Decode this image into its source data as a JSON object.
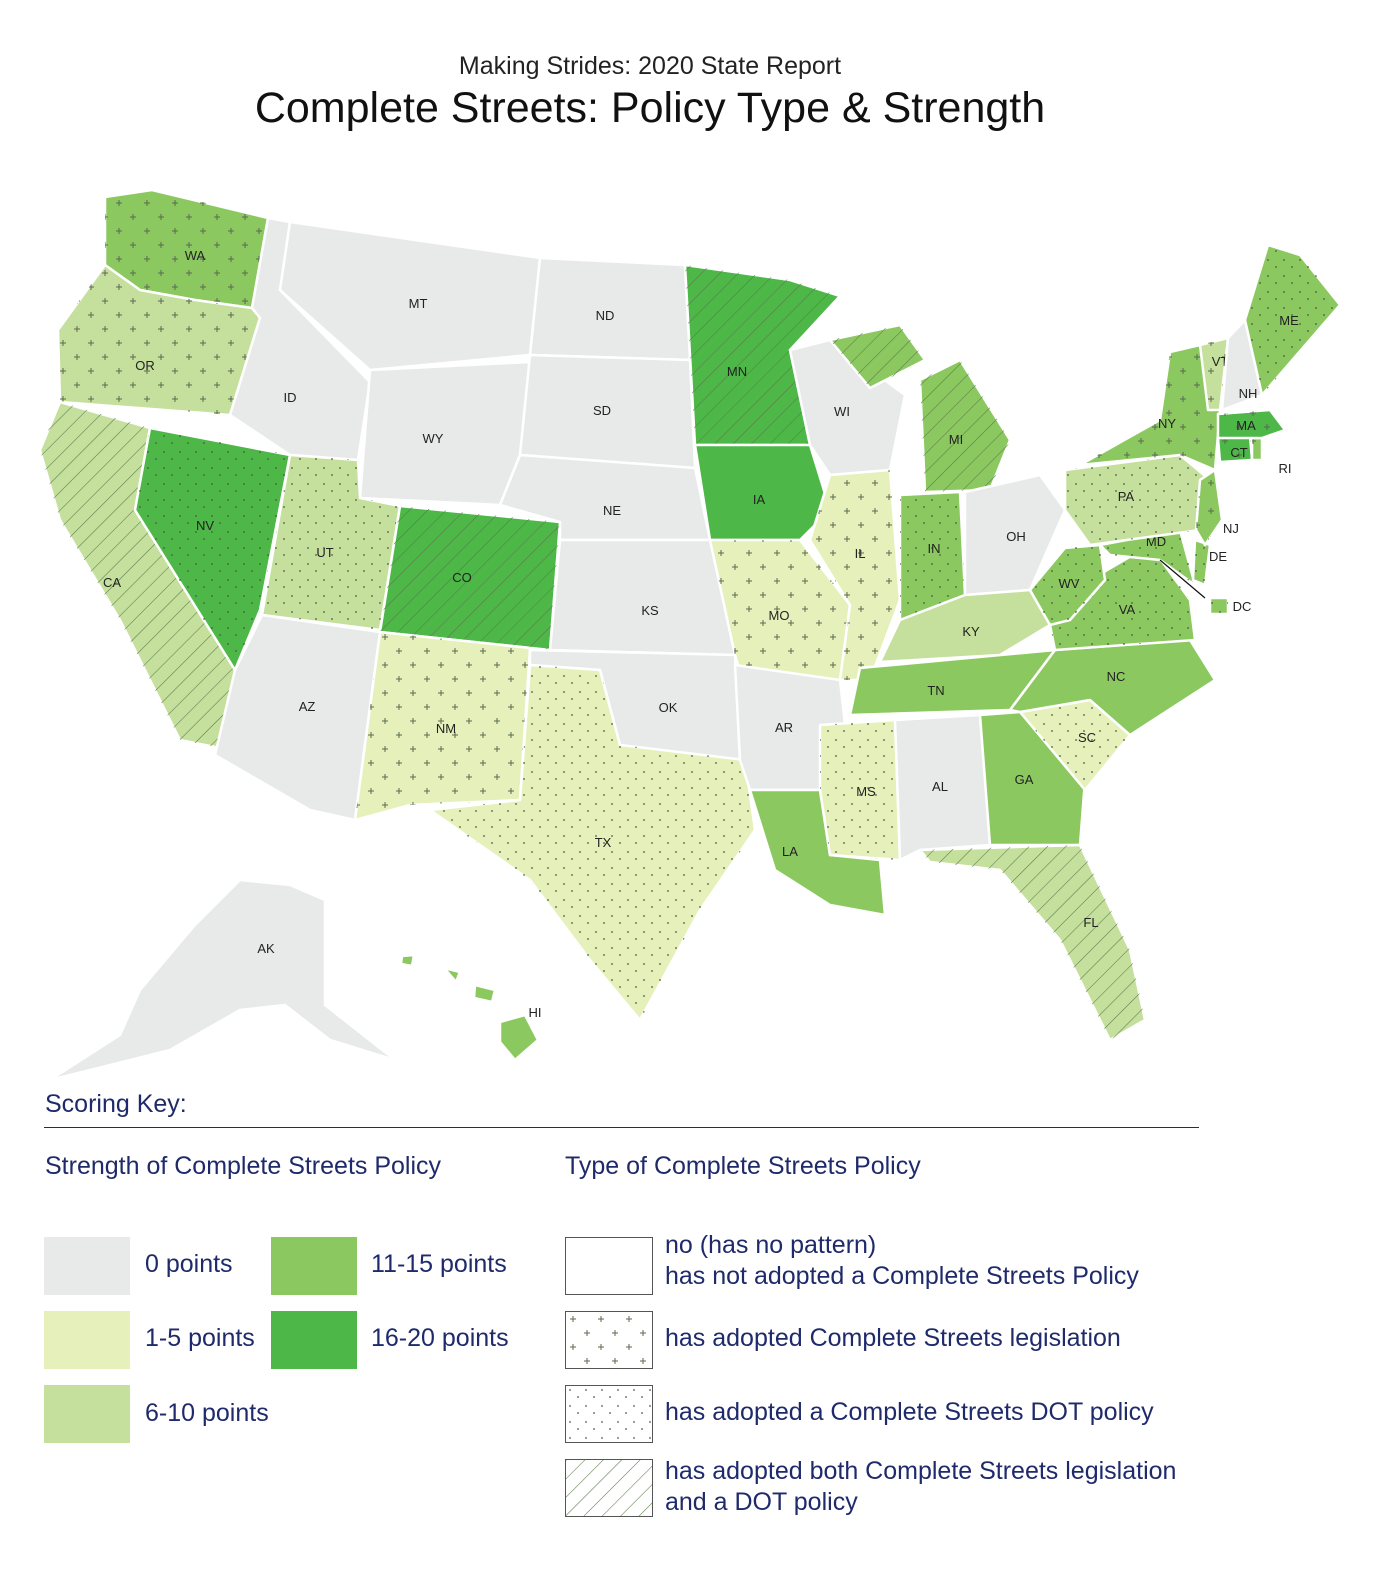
{
  "header": {
    "subtitle": "Making Strides:  2020 State Report",
    "title": "Complete Streets: Policy Type & Strength"
  },
  "colors": {
    "points_0": "#e8e9e9",
    "points_1_5": "#e6f0bb",
    "points_6_10": "#c5df9d",
    "points_11_15": "#8cc860",
    "points_16_20": "#4db748"
  },
  "states": [
    {
      "abbr": "WA",
      "strength": "11-15 points",
      "type": "legislation"
    },
    {
      "abbr": "OR",
      "strength": "6-10 points",
      "type": "legislation"
    },
    {
      "abbr": "CA",
      "strength": "6-10 points",
      "type": "both"
    },
    {
      "abbr": "NV",
      "strength": "16-20 points",
      "type": "dot"
    },
    {
      "abbr": "ID",
      "strength": "0 points",
      "type": "none"
    },
    {
      "abbr": "MT",
      "strength": "0 points",
      "type": "none"
    },
    {
      "abbr": "WY",
      "strength": "0 points",
      "type": "none"
    },
    {
      "abbr": "UT",
      "strength": "6-10 points",
      "type": "dot"
    },
    {
      "abbr": "CO",
      "strength": "16-20 points",
      "type": "both"
    },
    {
      "abbr": "AZ",
      "strength": "0 points",
      "type": "none"
    },
    {
      "abbr": "NM",
      "strength": "1-5 points",
      "type": "legislation"
    },
    {
      "abbr": "ND",
      "strength": "0 points",
      "type": "none"
    },
    {
      "abbr": "SD",
      "strength": "0 points",
      "type": "none"
    },
    {
      "abbr": "NE",
      "strength": "0 points",
      "type": "none"
    },
    {
      "abbr": "KS",
      "strength": "0 points",
      "type": "none"
    },
    {
      "abbr": "OK",
      "strength": "0 points",
      "type": "none"
    },
    {
      "abbr": "TX",
      "strength": "1-5 points",
      "type": "dot"
    },
    {
      "abbr": "MN",
      "strength": "16-20 points",
      "type": "both"
    },
    {
      "abbr": "IA",
      "strength": "16-20 points",
      "type": "none"
    },
    {
      "abbr": "MO",
      "strength": "1-5 points",
      "type": "legislation"
    },
    {
      "abbr": "AR",
      "strength": "0 points",
      "type": "none"
    },
    {
      "abbr": "LA",
      "strength": "11-15 points",
      "type": "none"
    },
    {
      "abbr": "WI",
      "strength": "0 points",
      "type": "none"
    },
    {
      "abbr": "IL",
      "strength": "1-5 points",
      "type": "legislation"
    },
    {
      "abbr": "MI",
      "strength": "11-15 points",
      "type": "both"
    },
    {
      "abbr": "IN",
      "strength": "11-15 points",
      "type": "dot"
    },
    {
      "abbr": "OH",
      "strength": "0 points",
      "type": "none"
    },
    {
      "abbr": "KY",
      "strength": "6-10 points",
      "type": "none"
    },
    {
      "abbr": "TN",
      "strength": "11-15 points",
      "type": "none"
    },
    {
      "abbr": "MS",
      "strength": "1-5 points",
      "type": "dot"
    },
    {
      "abbr": "AL",
      "strength": "0 points",
      "type": "none"
    },
    {
      "abbr": "GA",
      "strength": "11-15 points",
      "type": "none"
    },
    {
      "abbr": "FL",
      "strength": "6-10 points",
      "type": "both"
    },
    {
      "abbr": "SC",
      "strength": "1-5 points",
      "type": "dot"
    },
    {
      "abbr": "NC",
      "strength": "11-15 points",
      "type": "none"
    },
    {
      "abbr": "VA",
      "strength": "11-15 points",
      "type": "dot"
    },
    {
      "abbr": "WV",
      "strength": "11-15 points",
      "type": "dot"
    },
    {
      "abbr": "MD",
      "strength": "11-15 points",
      "type": "dot"
    },
    {
      "abbr": "DE",
      "strength": "11-15 points",
      "type": "dot"
    },
    {
      "abbr": "DC",
      "strength": "11-15 points",
      "type": "dot"
    },
    {
      "abbr": "PA",
      "strength": "6-10 points",
      "type": "dot"
    },
    {
      "abbr": "NJ",
      "strength": "11-15 points",
      "type": "legislation"
    },
    {
      "abbr": "NY",
      "strength": "11-15 points",
      "type": "legislation"
    },
    {
      "abbr": "CT",
      "strength": "16-20 points",
      "type": "legislation"
    },
    {
      "abbr": "RI",
      "strength": "11-15 points",
      "type": "legislation"
    },
    {
      "abbr": "MA",
      "strength": "16-20 points",
      "type": "legislation"
    },
    {
      "abbr": "VT",
      "strength": "6-10 points",
      "type": "legislation"
    },
    {
      "abbr": "NH",
      "strength": "0 points",
      "type": "none"
    },
    {
      "abbr": "ME",
      "strength": "11-15 points",
      "type": "dot"
    },
    {
      "abbr": "AK",
      "strength": "0 points",
      "type": "none"
    },
    {
      "abbr": "HI",
      "strength": "11-15 points",
      "type": "none"
    }
  ],
  "key": {
    "title": "Scoring Key:",
    "strength_heading": "Strength of Complete Streets Policy",
    "type_heading": "Type of Complete Streets Policy",
    "strength_items": [
      {
        "label": "0 points",
        "color": "#e8e9e9"
      },
      {
        "label": "1-5 points",
        "color": "#e6f0bb"
      },
      {
        "label": "6-10 points",
        "color": "#c5df9d"
      },
      {
        "label": "11-15 points",
        "color": "#8cc860"
      },
      {
        "label": "16-20 points",
        "color": "#4db748"
      }
    ],
    "type_items": [
      {
        "line1": "no (has no pattern)",
        "line2": "has not adopted a Complete Streets Policy"
      },
      {
        "line1": "has adopted Complete Streets legislation",
        "line2": ""
      },
      {
        "line1": "has adopted a Complete Streets DOT policy",
        "line2": ""
      },
      {
        "line1": "has adopted both Complete Streets legislation",
        "line2": "and a DOT policy"
      }
    ]
  }
}
